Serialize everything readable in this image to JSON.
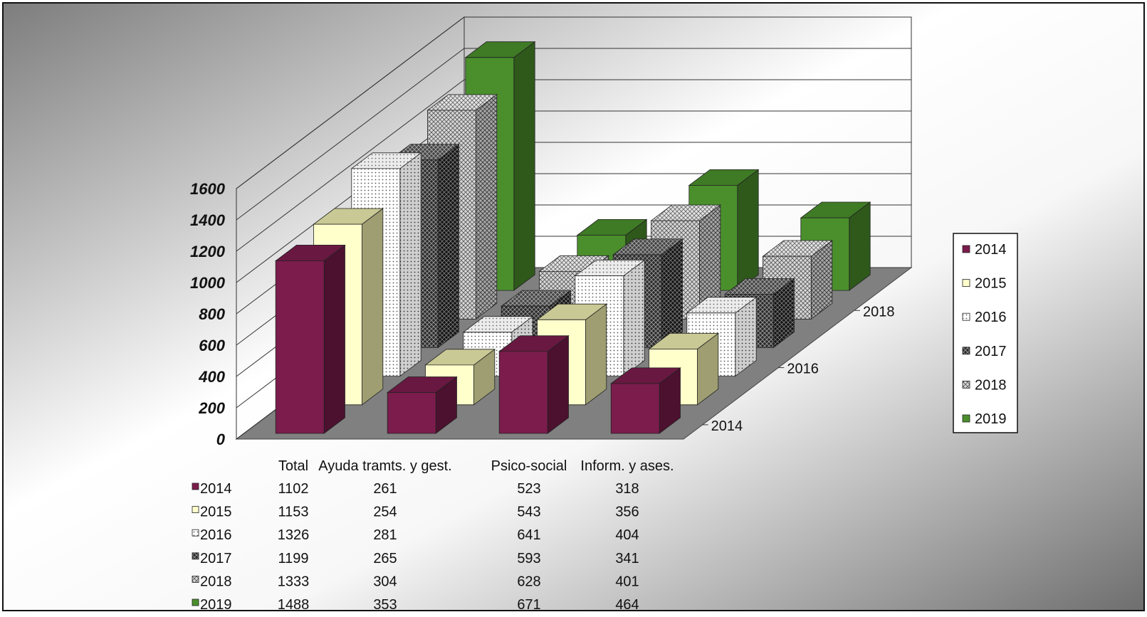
{
  "chart_data": {
    "type": "bar",
    "title": "",
    "xlabel": "",
    "ylabel": "",
    "ylim": [
      0,
      1600
    ],
    "y_ticks": [
      "0",
      "200",
      "400",
      "600",
      "800",
      "1000",
      "1200",
      "1400",
      "1600"
    ],
    "depth_ticks": [
      "2014",
      "2016",
      "2018"
    ],
    "categories": [
      "Total",
      "Ayuda tramts. y gest.",
      "Psico-social",
      "Inform. y ases."
    ],
    "series": [
      {
        "name": "2014",
        "values": [
          1102,
          261,
          523,
          318
        ],
        "color": "#7B1C4C",
        "pattern": "solid"
      },
      {
        "name": "2015",
        "values": [
          1153,
          254,
          543,
          356
        ],
        "color": "#FFFFCC",
        "pattern": "solid"
      },
      {
        "name": "2016",
        "values": [
          1326,
          281,
          641,
          404
        ],
        "color": "#FFFFFF",
        "pattern": "dots"
      },
      {
        "name": "2017",
        "values": [
          1199,
          265,
          593,
          341
        ],
        "color": "#3A3A3A",
        "pattern": "darkcross"
      },
      {
        "name": "2018",
        "values": [
          1333,
          304,
          628,
          401
        ],
        "color": "#BDBDBD",
        "pattern": "lightcross"
      },
      {
        "name": "2019",
        "values": [
          1488,
          353,
          671,
          464
        ],
        "color": "#4A8F2C",
        "pattern": "solid"
      }
    ],
    "grid": true,
    "legend_position": "right",
    "data_table": true
  }
}
